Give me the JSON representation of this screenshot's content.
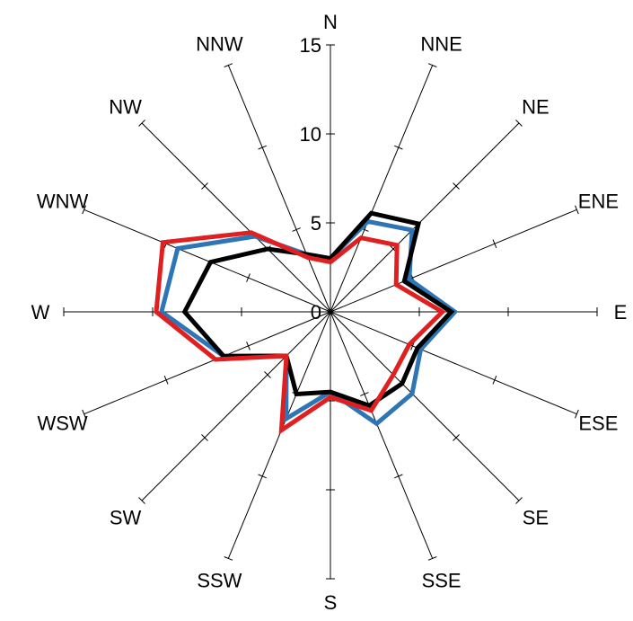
{
  "chart_data": {
    "type": "radar",
    "title": "",
    "directions": [
      "N",
      "NNE",
      "NE",
      "ENE",
      "E",
      "ESE",
      "SE",
      "SSE",
      "S",
      "SSW",
      "SW",
      "WSW",
      "W",
      "WNW",
      "NW",
      "NNW"
    ],
    "r_ticks": [
      "0",
      "5",
      "10",
      "15"
    ],
    "r_lim": [
      0,
      15
    ],
    "grid": false,
    "legend": "none",
    "series": [
      {
        "color": "#2e75b6",
        "values": [
          3,
          5.5,
          6.5,
          4.8,
          7,
          5.5,
          6.5,
          6.8,
          4.5,
          6.5,
          3.5,
          6.5,
          9.5,
          9.3,
          6,
          3.5
        ]
      },
      {
        "color": "#000000",
        "values": [
          3,
          6,
          7,
          4.5,
          6.8,
          5.3,
          5.7,
          5.7,
          4.5,
          5,
          3.5,
          6.5,
          8.2,
          7.3,
          5,
          3.5
        ]
      },
      {
        "color": "#e02020",
        "values": [
          2.8,
          4.5,
          5.3,
          4,
          6.3,
          4.8,
          5,
          6,
          4.8,
          7.2,
          3.5,
          7,
          9.8,
          10.2,
          6.3,
          3.3
        ]
      }
    ]
  }
}
